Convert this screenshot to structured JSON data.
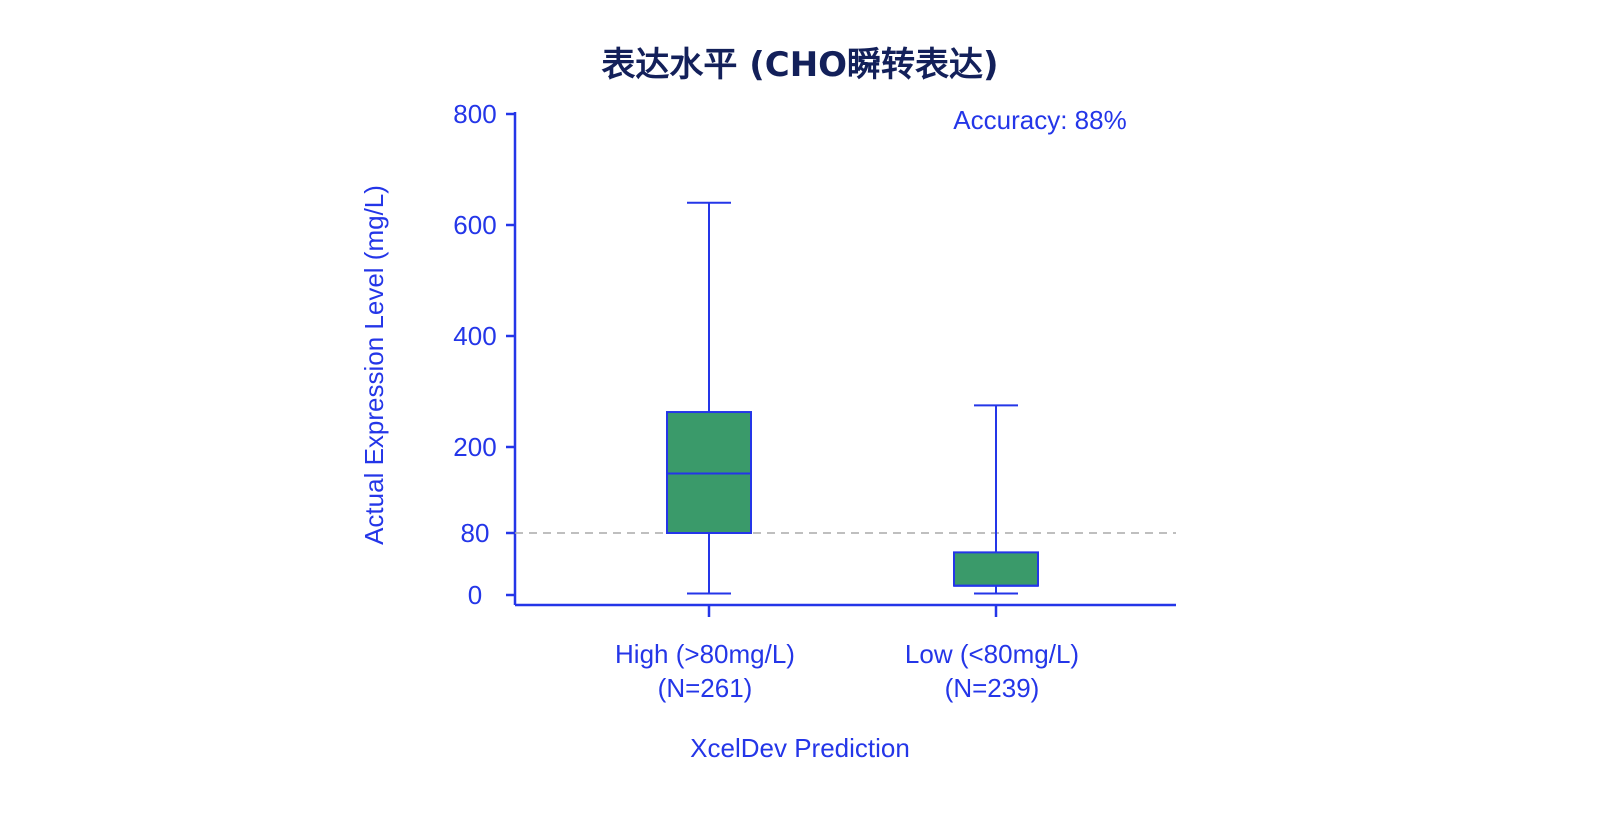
{
  "chart_data": {
    "type": "box",
    "title": "表达水平 (CHO瞬转表达)",
    "xlabel": "XcelDev Prediction",
    "ylabel": "Actual Expression Level (mg/L)",
    "ylim": [
      0,
      800
    ],
    "yticks": [
      0,
      80,
      200,
      400,
      600,
      800
    ],
    "threshold": 80,
    "annotation": "Accuracy:  88%",
    "grid": false,
    "colors": {
      "axis": "#2436e8",
      "box_fill": "#3a9a6a",
      "title": "#13205a",
      "threshold": "#aaaaaa"
    },
    "groups": [
      {
        "label": "High (>80mg/L)",
        "n_label": "(N=261)",
        "min": 2,
        "q1": 80,
        "median": 163,
        "q3": 263,
        "max": 640
      },
      {
        "label": "Low (<80mg/L)",
        "n_label": "(N=239)",
        "min": 2,
        "q1": 12,
        "median": 12,
        "q3": 55,
        "max": 275
      }
    ]
  }
}
